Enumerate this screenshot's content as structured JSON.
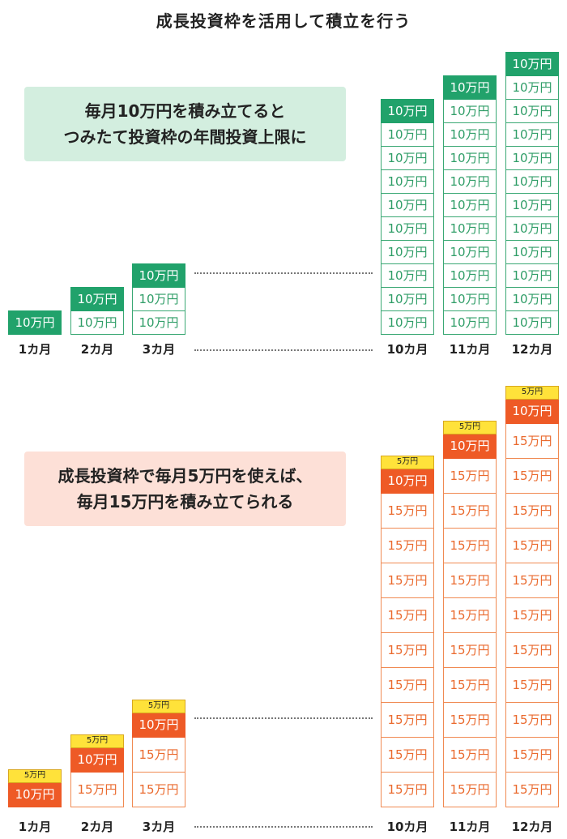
{
  "title": "成長投資枠を活用して積立を行う",
  "colors": {
    "green": "#21a26b",
    "green_callout_bg": "#d3eedf",
    "orange": "#ee5a26",
    "orange_callout_bg": "#fde0d7",
    "yellow": "#ffe23a"
  },
  "top_section": {
    "callout_lines": [
      "毎月10万円を積み立てると",
      "つみたて投資枠の年間投資上限に"
    ],
    "cell_label": "10万円",
    "months": [
      "1カ月",
      "2カ月",
      "3カ月",
      "10カ月",
      "11カ月",
      "12カ月"
    ],
    "column_cell_counts": [
      1,
      2,
      3,
      10,
      11,
      12
    ]
  },
  "bottom_section": {
    "callout_lines": [
      "成長投資枠で毎月5万円を使えば、",
      "毎月15万円を積み立てられる"
    ],
    "top_cell_label": "10万円",
    "base_cell_label": "15万円",
    "bar_label": "5万円",
    "months": [
      "1カ月",
      "2カ月",
      "3カ月",
      "10カ月",
      "11カ月",
      "12カ月"
    ],
    "column_cell_counts": [
      1,
      2,
      3,
      10,
      11,
      12
    ]
  }
}
